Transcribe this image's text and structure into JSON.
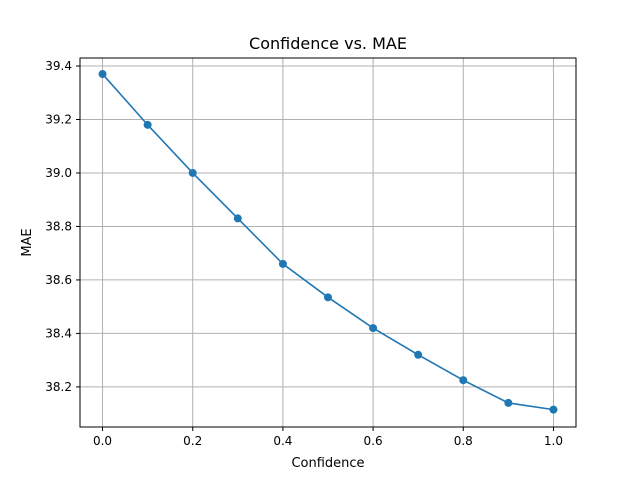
{
  "chart_data": {
    "type": "line",
    "title": "Confidence vs. MAE",
    "xlabel": "Confidence",
    "ylabel": "MAE",
    "xlim": [
      -0.05,
      1.05
    ],
    "ylim": [
      38.05,
      39.43
    ],
    "xticks": [
      "0.0",
      "0.2",
      "0.4",
      "0.6",
      "0.8",
      "1.0"
    ],
    "yticks": [
      "38.2",
      "38.4",
      "38.6",
      "38.8",
      "39.0",
      "39.2",
      "39.4"
    ],
    "grid": true,
    "series": [
      {
        "color": "#1f77b4",
        "marker": "circle",
        "x": [
          0.0,
          0.1,
          0.2,
          0.3,
          0.4,
          0.5,
          0.6,
          0.7,
          0.8,
          0.9,
          1.0
        ],
        "y": [
          39.37,
          39.18,
          39.0,
          38.83,
          38.66,
          38.535,
          38.42,
          38.32,
          38.225,
          38.14,
          38.115
        ]
      }
    ]
  }
}
